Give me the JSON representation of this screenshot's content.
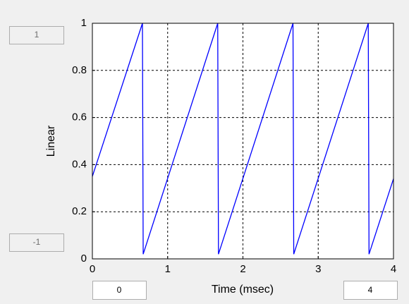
{
  "chart_data": {
    "type": "line",
    "xlabel": "Time (msec)",
    "ylabel": "Linear",
    "x": [
      0,
      0.665,
      0.675,
      1.665,
      1.675,
      2.665,
      2.675,
      3.665,
      3.675,
      4
    ],
    "values": [
      0.35,
      1.0,
      0.02,
      1.0,
      0.02,
      1.0,
      0.02,
      1.0,
      0.02,
      0.34
    ],
    "color": "#0000ff",
    "xlim": [
      0,
      4
    ],
    "xticks": [
      0,
      1,
      2,
      3,
      4
    ],
    "ylim": [
      0,
      1
    ],
    "yticks": [
      0,
      0.2,
      0.4,
      0.6,
      0.8,
      1
    ],
    "grid": true
  },
  "controls": {
    "ymax_box": "1",
    "ymin_box": "-1",
    "xmin_box": "0",
    "xmax_box": "4"
  }
}
